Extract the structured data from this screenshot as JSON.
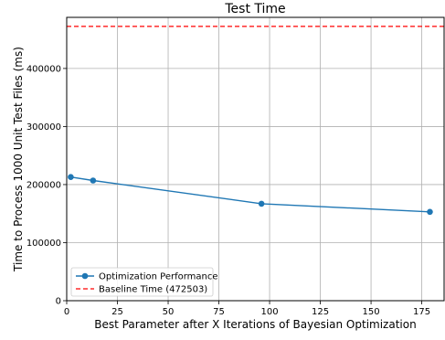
{
  "chart_data": {
    "type": "line",
    "title": "Test Time",
    "xlabel": "Best Parameter after X Iterations of Bayesian Optimization",
    "ylabel": "Time to Process 1000 Unit Test Files (ms)",
    "xlim": [
      0,
      186
    ],
    "ylim": [
      0,
      488000
    ],
    "xticks": [
      0,
      25,
      50,
      75,
      100,
      125,
      150,
      175
    ],
    "yticks": [
      0,
      100000,
      200000,
      300000,
      400000
    ],
    "grid": true,
    "legend_position": "lower-left",
    "series": [
      {
        "name": "Optimization Performance",
        "color": "#1f77b4",
        "style": "line-marker",
        "x": [
          2,
          13,
          96,
          179
        ],
        "y": [
          213000,
          207000,
          167000,
          153000
        ]
      }
    ],
    "hlines": [
      {
        "name": "Baseline Time (472503)",
        "y": 472503,
        "color": "#ff0000",
        "style": "dashed"
      }
    ]
  }
}
